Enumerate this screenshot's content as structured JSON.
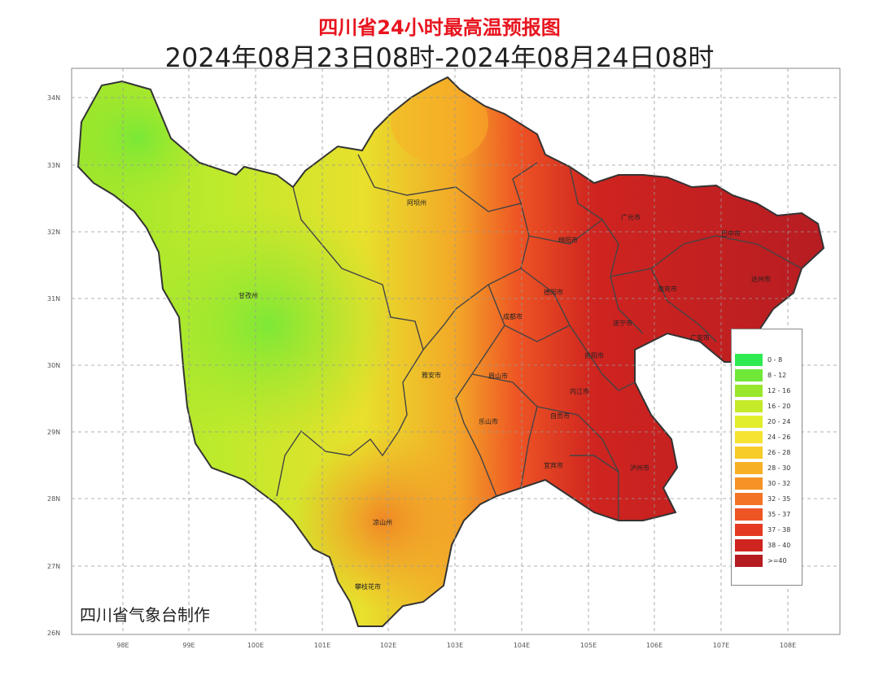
{
  "header": {
    "title": "四川省24小时最高温预报图",
    "subtitle": "2024年08月23日08时-2024年08月24日08时"
  },
  "axes": {
    "y_ticks": [
      "34N",
      "33N",
      "32N",
      "31N",
      "30N",
      "29N",
      "28N",
      "27N",
      "26N"
    ],
    "x_ticks": [
      "98E",
      "99E",
      "100E",
      "101E",
      "102E",
      "103E",
      "104E",
      "105E",
      "106E",
      "107E",
      "108E"
    ]
  },
  "cities": [
    "广元市",
    "巴中市",
    "绵阳市",
    "达州市",
    "南充市",
    "德阳市",
    "阿坝州",
    "遂宁市",
    "广安市",
    "成都市",
    "甘孜州",
    "雅安市",
    "眉山市",
    "资阳市",
    "乐山市",
    "内江市",
    "自贡市",
    "宜宾市",
    "泸州市",
    "凉山州",
    "攀枝花市"
  ],
  "legend": {
    "items": [
      {
        "label": "0 - 8",
        "color": "#2eeb52"
      },
      {
        "label": "8 - 12",
        "color": "#6fe838"
      },
      {
        "label": "12 - 16",
        "color": "#9ae62c"
      },
      {
        "label": "16 - 20",
        "color": "#c4ea2a"
      },
      {
        "label": "20 - 24",
        "color": "#e2ee2c"
      },
      {
        "label": "24 - 26",
        "color": "#f6e230"
      },
      {
        "label": "26 - 28",
        "color": "#f8cc28"
      },
      {
        "label": "28 - 30",
        "color": "#f7b026"
      },
      {
        "label": "30 - 32",
        "color": "#f59326"
      },
      {
        "label": "32 - 35",
        "color": "#f27424"
      },
      {
        "label": "35 - 37",
        "color": "#ee5524"
      },
      {
        "label": "37 - 38",
        "color": "#e53a22"
      },
      {
        "label": "38 - 40",
        "color": "#cf2420"
      },
      {
        "label": ">=40",
        "color": "#b51c22"
      }
    ]
  },
  "footer": {
    "producer": "四川省气象台制作"
  }
}
